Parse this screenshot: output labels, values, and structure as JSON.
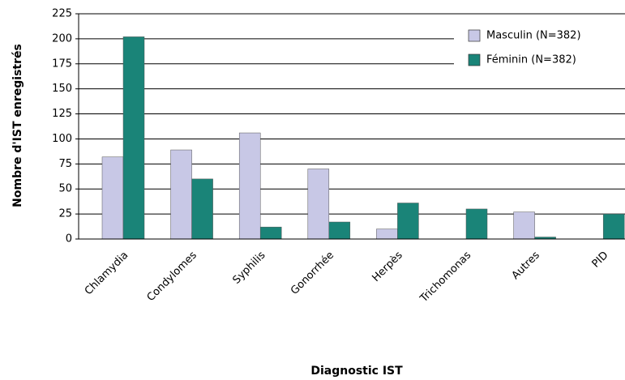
{
  "chart_data": {
    "type": "bar",
    "x_label": "Diagnostic IST",
    "y_label": "Nombre d'IST enregistrés",
    "categories": [
      "Chlamydia",
      "Condylomes",
      "Syphilis",
      "Gonorrhée",
      "Herpès",
      "Trichomonas",
      "Autres",
      "PID"
    ],
    "series": [
      {
        "name": "Masculin (N=382)",
        "color": "#c8c8e6",
        "values": [
          82,
          89,
          106,
          70,
          10,
          0,
          27,
          0
        ]
      },
      {
        "name": "Féminin (N=382)",
        "color": "#1a8478",
        "values": [
          202,
          60,
          12,
          17,
          36,
          30,
          2,
          25
        ]
      }
    ],
    "ylim": [
      0,
      225
    ],
    "yticks": [
      0,
      25,
      50,
      75,
      100,
      125,
      150,
      175,
      200,
      225
    ],
    "grid": true,
    "legend": "upper right"
  }
}
